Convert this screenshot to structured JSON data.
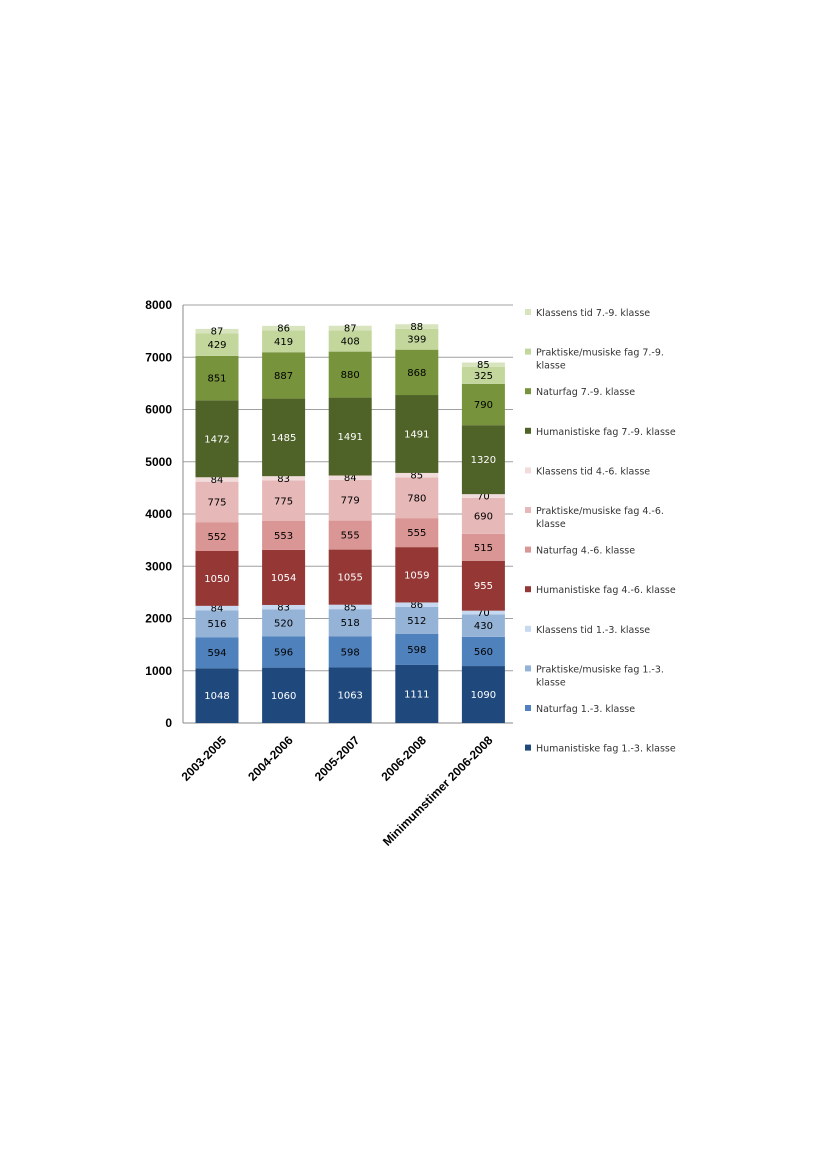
{
  "chart_data": {
    "type": "bar",
    "stacked": true,
    "categories": [
      "2003-2005",
      "2004-2006",
      "2005-2007",
      "2006-2008",
      "Minimumstimer 2006-2008"
    ],
    "ylim": [
      0,
      8000
    ],
    "yticks": [
      0,
      1000,
      2000,
      3000,
      4000,
      5000,
      6000,
      7000,
      8000
    ],
    "grid": true,
    "legend_position": "right",
    "series": [
      {
        "name": "Humanistiske fag 1.-3. klasse",
        "color": "#1f497d",
        "values": [
          1048,
          1060,
          1063,
          1111,
          1090
        ]
      },
      {
        "name": "Naturfag 1.-3. klasse",
        "color": "#4f81bd",
        "values": [
          594,
          596,
          598,
          598,
          560
        ]
      },
      {
        "name": "Praktiske/musiske fag 1.-3. klasse",
        "color": "#95b3d7",
        "values": [
          516,
          520,
          518,
          512,
          430
        ]
      },
      {
        "name": "Klassens tid 1.-3. klasse",
        "color": "#c6d9f1",
        "values": [
          84,
          83,
          85,
          86,
          70
        ]
      },
      {
        "name": "Humanistiske fag 4.-6. klasse",
        "color": "#953735",
        "values": [
          1050,
          1054,
          1055,
          1059,
          955
        ]
      },
      {
        "name": "Naturfag 4.-6. klasse",
        "color": "#d99694",
        "values": [
          552,
          553,
          555,
          555,
          515
        ]
      },
      {
        "name": "Praktiske/musiske fag 4.-6. klasse",
        "color": "#e6b9b8",
        "values": [
          775,
          775,
          779,
          780,
          690
        ]
      },
      {
        "name": "Klassens tid 4.-6. klasse",
        "color": "#f2dcdb",
        "values": [
          84,
          83,
          84,
          85,
          70
        ]
      },
      {
        "name": "Humanistiske fag 7.-9. klasse",
        "color": "#4f6228",
        "values": [
          1472,
          1485,
          1491,
          1491,
          1320
        ]
      },
      {
        "name": "Naturfag 7.-9. klasse",
        "color": "#77933c",
        "values": [
          851,
          887,
          880,
          868,
          790
        ]
      },
      {
        "name": "Praktiske/musiske fag 7.-9. klasse",
        "color": "#c3d69b",
        "values": [
          429,
          419,
          408,
          399,
          325
        ]
      },
      {
        "name": "Klassens tid 7.-9. klasse",
        "color": "#d7e4bd",
        "values": [
          87,
          86,
          87,
          88,
          85
        ]
      }
    ]
  },
  "legend": [
    {
      "lines": [
        "Klassens tid 7.-9. klasse"
      ],
      "color": "#d7e4bd"
    },
    {
      "lines": [
        "Praktiske/musiske fag 7.-9.",
        "klasse"
      ],
      "color": "#c3d69b"
    },
    {
      "lines": [
        "Naturfag 7.-9. klasse"
      ],
      "color": "#77933c"
    },
    {
      "lines": [
        "Humanistiske fag 7.-9. klasse"
      ],
      "color": "#4f6228"
    },
    {
      "lines": [
        "Klassens tid 4.-6. klasse"
      ],
      "color": "#f2dcdb"
    },
    {
      "lines": [
        "Praktiske/musiske fag 4.-6.",
        "klasse"
      ],
      "color": "#e6b9b8"
    },
    {
      "lines": [
        "Naturfag 4.-6. klasse"
      ],
      "color": "#d99694"
    },
    {
      "lines": [
        "Humanistiske fag 4.-6. klasse"
      ],
      "color": "#953735"
    },
    {
      "lines": [
        "Klassens tid 1.-3. klasse"
      ],
      "color": "#c6d9f1"
    },
    {
      "lines": [
        "Praktiske/musiske fag 1.-3.",
        "klasse"
      ],
      "color": "#95b3d7"
    },
    {
      "lines": [
        "Naturfag 1.-3. klasse"
      ],
      "color": "#4f81bd"
    },
    {
      "lines": [
        "Humanistiske fag 1.-3. klasse"
      ],
      "color": "#1f497d"
    }
  ]
}
